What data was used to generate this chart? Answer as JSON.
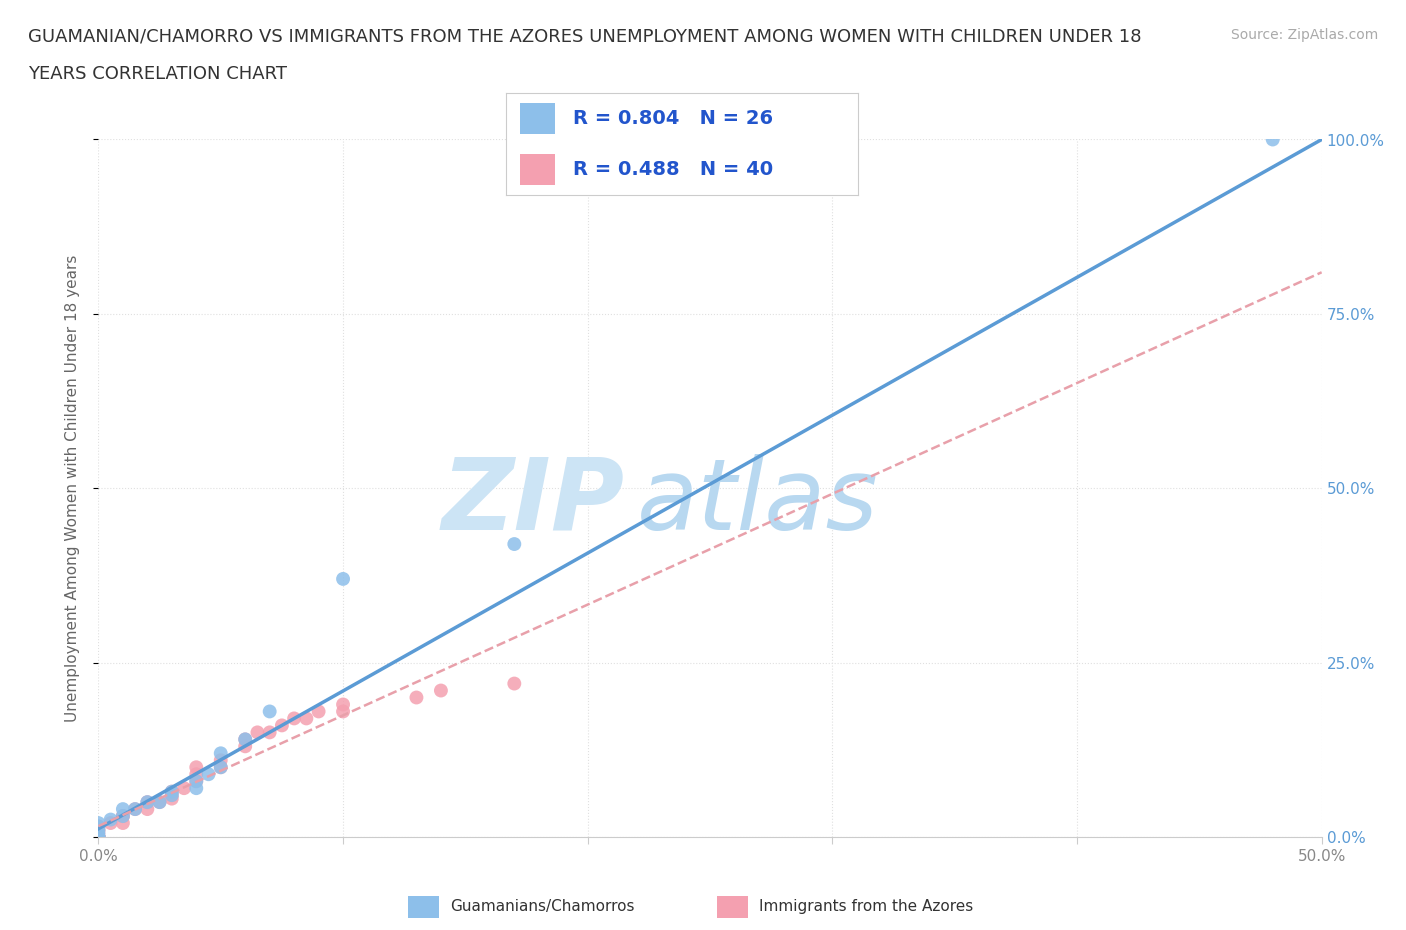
{
  "title_line1": "GUAMANIAN/CHAMORRO VS IMMIGRANTS FROM THE AZORES UNEMPLOYMENT AMONG WOMEN WITH CHILDREN UNDER 18",
  "title_line2": "YEARS CORRELATION CHART",
  "source": "Source: ZipAtlas.com",
  "ylabel": "Unemployment Among Women with Children Under 18 years",
  "xlim": [
    0.0,
    0.5
  ],
  "ylim": [
    0.0,
    1.0
  ],
  "xticks": [
    0.0,
    0.1,
    0.2,
    0.3,
    0.4,
    0.5
  ],
  "yticks": [
    0.0,
    0.25,
    0.5,
    0.75,
    1.0
  ],
  "xticklabels_sparse": {
    "0": "0.0%",
    "5": "50.0%"
  },
  "yticklabels_right": [
    "0.0%",
    "25.0%",
    "50.0%",
    "75.0%",
    "100.0%"
  ],
  "background_color": "#ffffff",
  "watermark": "ZIPatlas",
  "watermark_color": "#cce4f5",
  "series1_name": "Guamanians/Chamorros",
  "series1_color": "#8dbfea",
  "series1_R": 0.804,
  "series1_N": 26,
  "series1_x": [
    0.0,
    0.0,
    0.0,
    0.0,
    0.0,
    0.0,
    0.0,
    0.0,
    0.005,
    0.01,
    0.01,
    0.015,
    0.02,
    0.025,
    0.03,
    0.03,
    0.04,
    0.04,
    0.045,
    0.05,
    0.05,
    0.06,
    0.07,
    0.1,
    0.17,
    0.48
  ],
  "series1_y": [
    0.0,
    0.0,
    0.0,
    0.0,
    0.005,
    0.01,
    0.015,
    0.02,
    0.025,
    0.03,
    0.04,
    0.04,
    0.05,
    0.05,
    0.06,
    0.065,
    0.07,
    0.08,
    0.09,
    0.1,
    0.12,
    0.14,
    0.18,
    0.37,
    0.42,
    1.0
  ],
  "series2_name": "Immigrants from the Azores",
  "series2_color": "#f4a0b0",
  "series2_R": 0.488,
  "series2_N": 40,
  "series2_x": [
    0.0,
    0.0,
    0.0,
    0.0,
    0.0,
    0.0,
    0.0,
    0.0,
    0.0,
    0.0,
    0.005,
    0.01,
    0.01,
    0.01,
    0.015,
    0.02,
    0.02,
    0.025,
    0.03,
    0.03,
    0.03,
    0.035,
    0.04,
    0.04,
    0.04,
    0.05,
    0.05,
    0.06,
    0.06,
    0.065,
    0.07,
    0.075,
    0.08,
    0.085,
    0.09,
    0.1,
    0.1,
    0.13,
    0.14,
    0.17
  ],
  "series2_y": [
    0.0,
    0.0,
    0.0,
    0.0,
    0.0,
    0.0,
    0.005,
    0.01,
    0.01,
    0.015,
    0.02,
    0.02,
    0.03,
    0.03,
    0.04,
    0.04,
    0.05,
    0.05,
    0.055,
    0.06,
    0.065,
    0.07,
    0.08,
    0.09,
    0.1,
    0.1,
    0.11,
    0.13,
    0.14,
    0.15,
    0.15,
    0.16,
    0.17,
    0.17,
    0.18,
    0.18,
    0.19,
    0.2,
    0.21,
    0.22
  ],
  "trendline1_color": "#5b9bd5",
  "trendline2_color": "#e06070",
  "trendline2_dash_color": "#e8a0aa",
  "grid_color": "#e0e0e0",
  "stat_color": "#2255cc",
  "title_fontsize": 13,
  "axis_label_fontsize": 11,
  "tick_fontsize": 11,
  "legend_fontsize": 14,
  "source_fontsize": 10,
  "marker_size": 100
}
